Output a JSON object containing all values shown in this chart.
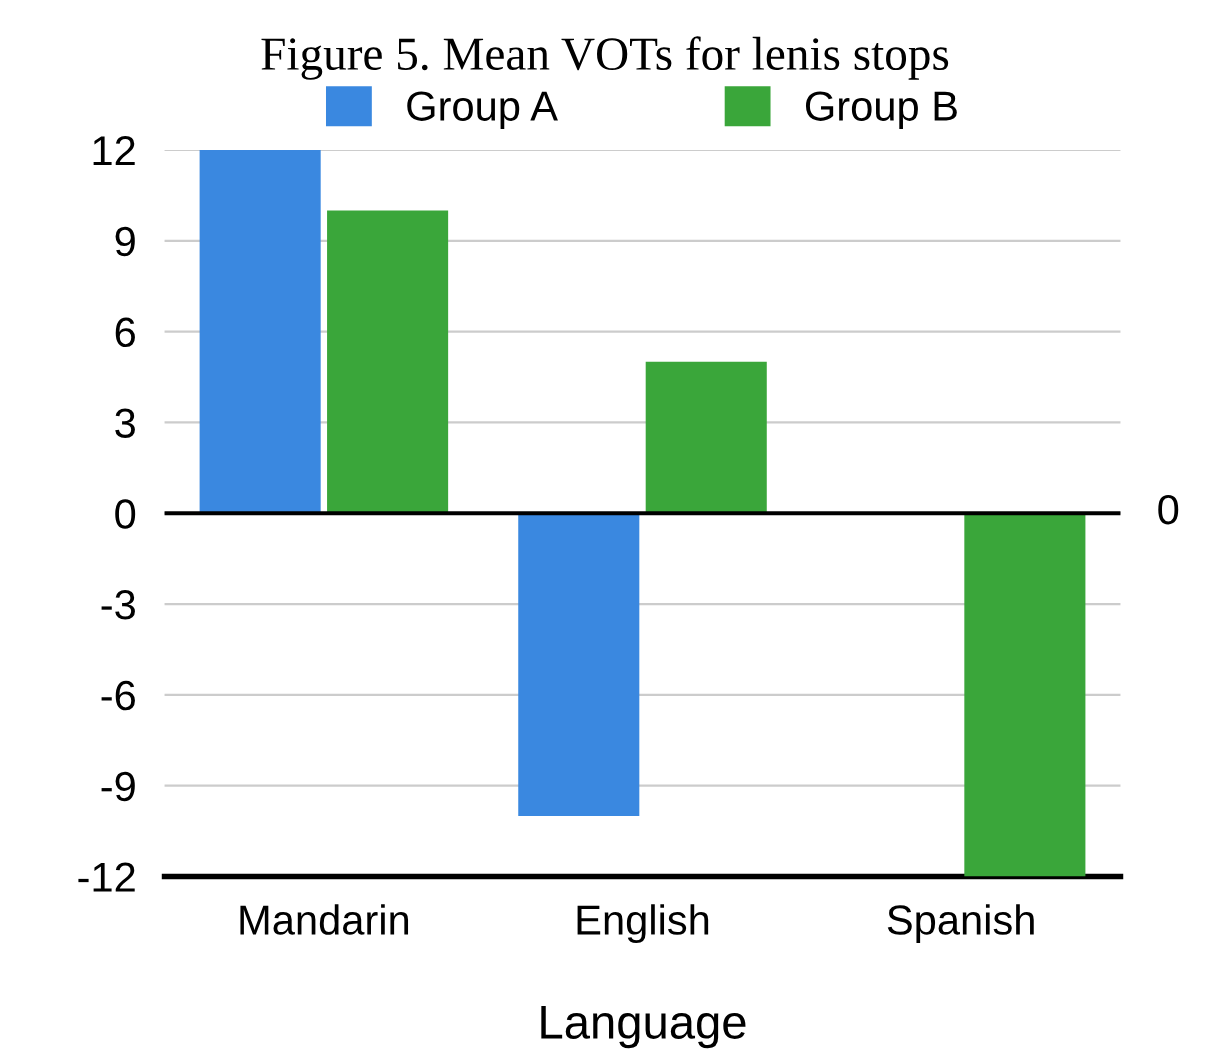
{
  "chart_data": {
    "type": "bar",
    "title": "Figure 5. Mean VOTs for lenis stops",
    "xlabel": "Language",
    "categories": [
      "Mandarin",
      "English",
      "Spanish"
    ],
    "series": [
      {
        "name": "Group A",
        "color": "#3a88e0",
        "values": [
          12,
          -10,
          0
        ]
      },
      {
        "name": "Group B",
        "color": "#3aa63a",
        "values": [
          10,
          5,
          -12
        ]
      }
    ],
    "ylim": [
      -12,
      12
    ],
    "yticks": [
      -12,
      -9,
      -6,
      -3,
      0,
      3,
      6,
      9,
      12
    ],
    "grid": "y",
    "legend": "top",
    "ref_lines": [
      {
        "axis": "y",
        "value": 0,
        "color": "#000000"
      }
    ],
    "annotations": [
      "0"
    ]
  }
}
